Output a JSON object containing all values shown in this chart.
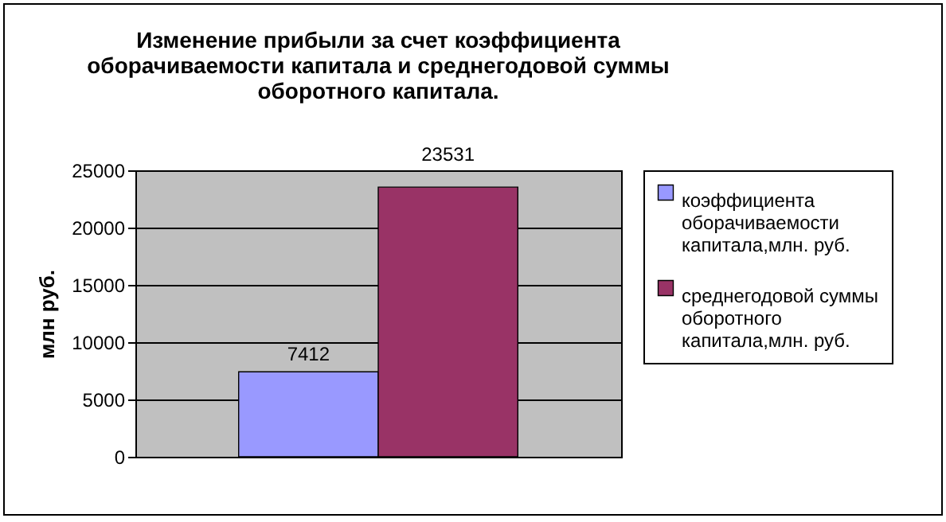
{
  "chart_data": {
    "type": "bar",
    "title": "Изменение прибыли за счет коэффициента оборачиваемости капитала и среднегодовой суммы оборотного капитала.",
    "ylabel": "млн руб.",
    "categories": [
      null
    ],
    "series": [
      {
        "name": "коэффициента оборачиваемости капитала,млн. руб.",
        "color": "#9999ff",
        "values": [
          7412
        ]
      },
      {
        "name": "среднегодовой суммы оборотного капитала,млн. руб.",
        "color": "#993366",
        "values": [
          23531
        ]
      }
    ],
    "ylim": [
      0,
      25000
    ],
    "yticks": [
      0,
      5000,
      10000,
      15000,
      20000,
      25000
    ],
    "grid": "y",
    "legend": "right",
    "data_labels": true
  }
}
